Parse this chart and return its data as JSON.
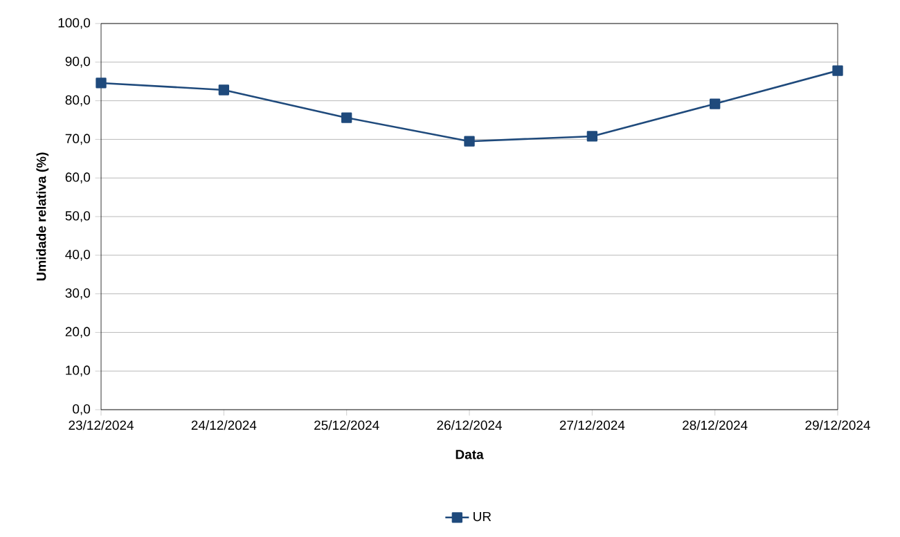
{
  "chart_data": {
    "type": "line",
    "xlabel": "Data",
    "ylabel": "Umidade relativa (%)",
    "categories": [
      "23/12/2024",
      "24/12/2024",
      "25/12/2024",
      "26/12/2024",
      "27/12/2024",
      "28/12/2024",
      "29/12/2024"
    ],
    "series": [
      {
        "name": "UR",
        "color": "#1f4a7c",
        "values": [
          84.6,
          82.8,
          75.6,
          69.5,
          70.8,
          79.2,
          87.8
        ]
      }
    ],
    "ylim": [
      0,
      100
    ],
    "yticks": [
      {
        "value": 0,
        "label": "0,0"
      },
      {
        "value": 10,
        "label": "10,0"
      },
      {
        "value": 20,
        "label": "20,0"
      },
      {
        "value": 30,
        "label": "30,0"
      },
      {
        "value": 40,
        "label": "40,0"
      },
      {
        "value": 50,
        "label": "50,0"
      },
      {
        "value": 60,
        "label": "60,0"
      },
      {
        "value": 70,
        "label": "70,0"
      },
      {
        "value": 80,
        "label": "80,0"
      },
      {
        "value": 90,
        "label": "90,0"
      },
      {
        "value": 100,
        "label": "100,0"
      }
    ],
    "grid": "y",
    "legend": "bottom",
    "marker": "square",
    "line_style": "solid"
  }
}
